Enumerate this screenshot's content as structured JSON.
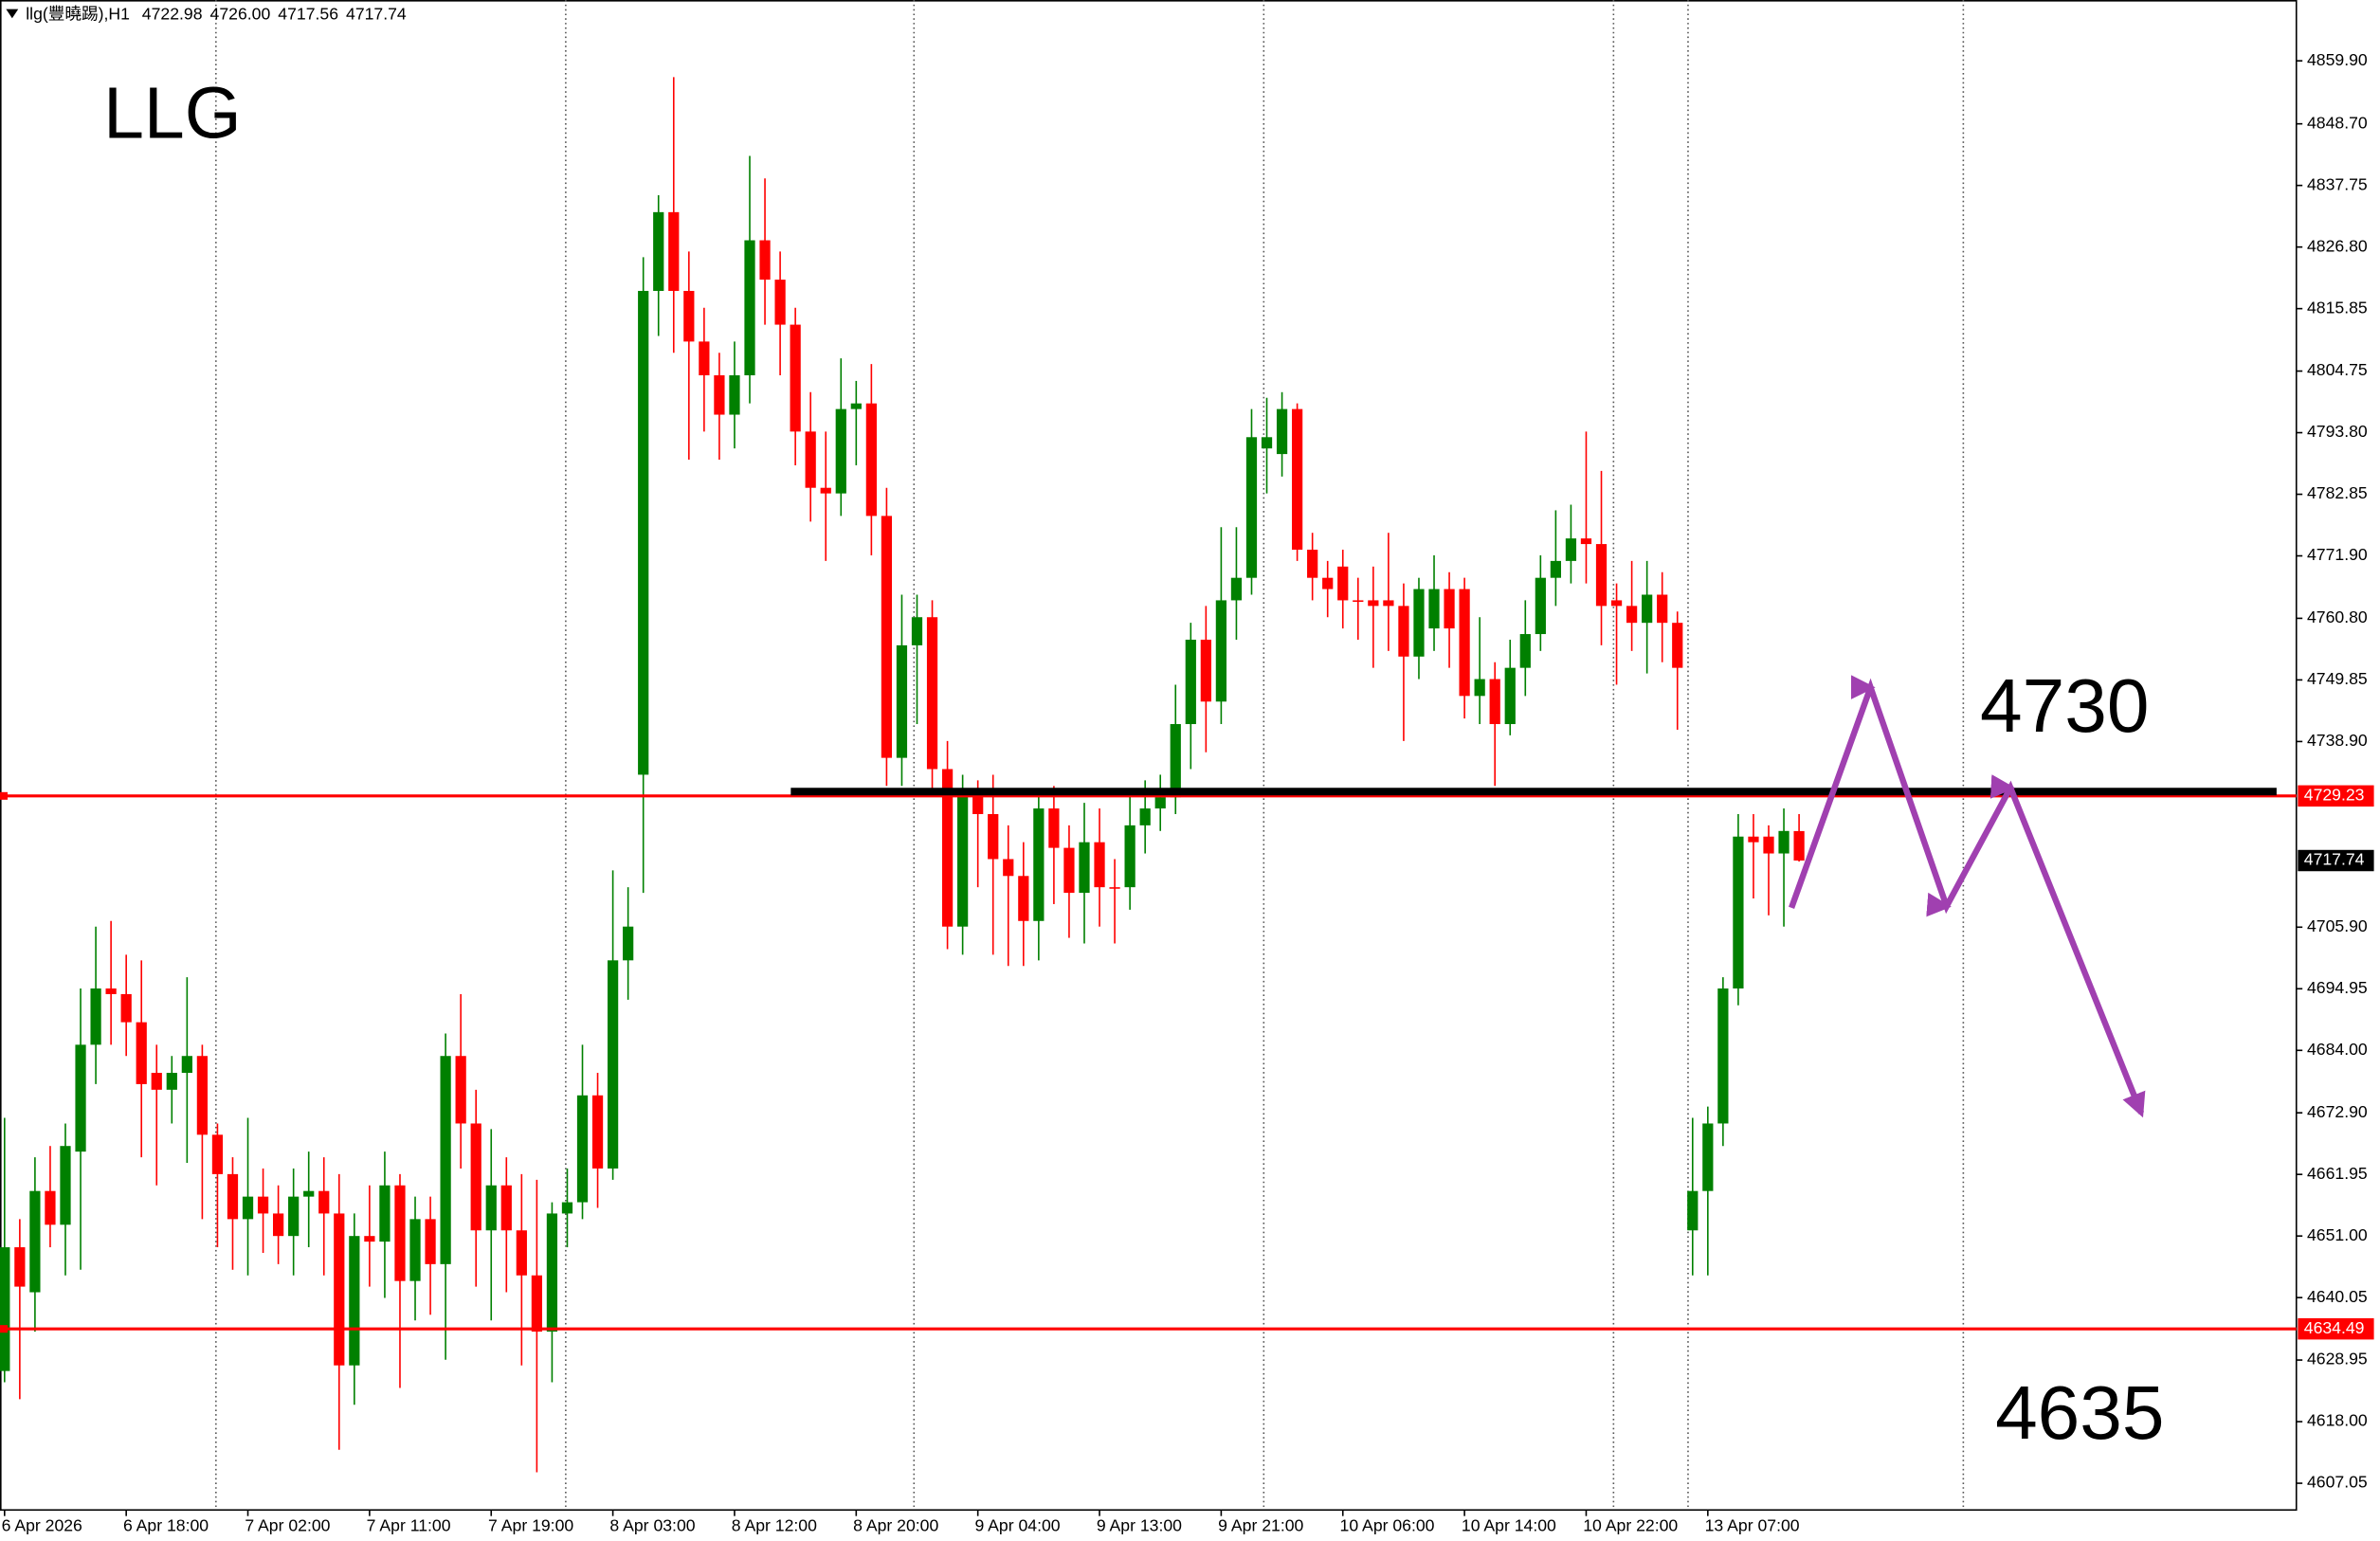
{
  "chart_data": {
    "type": "candlestick",
    "title": "llg(豐曉踢),H1",
    "title_values": [
      "4722.98",
      "4726.00",
      "4717.56",
      "4717.74"
    ],
    "annotations": [
      "LLG",
      "4730",
      "4635"
    ],
    "up_color": "#008000",
    "down_color": "#ff0000",
    "categories": [
      "6 Apr 2026",
      null,
      null,
      null,
      null,
      null,
      null,
      null,
      "6 Apr 18:00",
      null,
      null,
      null,
      null,
      null,
      null,
      null,
      "7 Apr 02:00",
      null,
      null,
      null,
      null,
      null,
      null,
      null,
      "7 Apr 11:00",
      null,
      null,
      null,
      null,
      null,
      null,
      null,
      "7 Apr 19:00",
      null,
      null,
      null,
      null,
      null,
      null,
      null,
      "8 Apr 03:00",
      null,
      null,
      null,
      null,
      null,
      null,
      null,
      "8 Apr 12:00",
      null,
      null,
      null,
      null,
      null,
      null,
      null,
      "8 Apr 20:00",
      null,
      null,
      null,
      null,
      null,
      null,
      null,
      "9 Apr 04:00",
      null,
      null,
      null,
      null,
      null,
      null,
      null,
      "9 Apr 13:00",
      null,
      null,
      null,
      null,
      null,
      null,
      null,
      "9 Apr 21:00",
      null,
      null,
      null,
      null,
      null,
      null,
      null,
      "10 Apr 06:00",
      null,
      null,
      null,
      null,
      null,
      null,
      null,
      "10 Apr 14:00",
      null,
      null,
      null,
      null,
      null,
      null,
      null,
      "10 Apr 22:00",
      null,
      null,
      null,
      null,
      null,
      null,
      null,
      "13 Apr 07:00",
      null,
      null,
      null,
      null,
      null,
      null
    ],
    "open": [
      4627,
      4649,
      4641,
      4659,
      4653,
      4666,
      4685,
      4695,
      4694,
      4689,
      4680,
      4677,
      4680,
      4683,
      4669,
      4662,
      4654,
      4658,
      4655,
      4651,
      4658,
      4659,
      4655,
      4628,
      4651,
      4650,
      4660,
      4643,
      4654,
      4646,
      4683,
      4671,
      4652,
      4660,
      4652,
      4644,
      4634,
      4655,
      4657,
      4676,
      4663,
      4700,
      4733,
      4819,
      4833,
      4819,
      4810,
      4804,
      4797,
      4804,
      4828,
      4821,
      4813,
      4794,
      4784,
      4783,
      4798,
      4799,
      4779,
      4736,
      4756,
      4761,
      4734,
      4706,
      4730,
      4726,
      4718,
      4715,
      4707,
      4727,
      4720,
      4712,
      4721,
      4713,
      4713,
      4724,
      4727,
      4729,
      4742,
      4757,
      4746,
      4764,
      4768,
      4791,
      4790,
      4798,
      4773,
      4768,
      4770,
      4764,
      4764,
      4764,
      4763,
      4754,
      4759,
      4766,
      4766,
      4747,
      4750,
      4742,
      4752,
      4758,
      4768,
      4771,
      4775,
      4774,
      4764,
      4763,
      4760,
      4765,
      4760,
      4652,
      4659,
      4671,
      4695,
      4722,
      4722,
      4719,
      4722.98
    ],
    "high": [
      4672,
      4654,
      4665,
      4667,
      4671,
      4695,
      4706,
      4707,
      4701,
      4700,
      4685,
      4683,
      4697,
      4685,
      4671,
      4665,
      4672,
      4663,
      4660,
      4663,
      4666,
      4665,
      4662,
      4655,
      4660,
      4666,
      4662,
      4658,
      4658,
      4687,
      4694,
      4677,
      4670,
      4665,
      4662,
      4661,
      4657,
      4663,
      4685,
      4680,
      4716,
      4713,
      4825,
      4836,
      4857,
      4826,
      4816,
      4808,
      4810,
      4843,
      4839,
      4826,
      4816,
      4801,
      4794,
      4807,
      4803,
      4806,
      4784,
      4765,
      4765,
      4764,
      4739,
      4733,
      4732,
      4733,
      4724,
      4721,
      4730,
      4731,
      4724,
      4728,
      4727,
      4718,
      4730,
      4732,
      4733,
      4749,
      4760,
      4763,
      4777,
      4777,
      4798,
      4800,
      4801,
      4799,
      4776,
      4771,
      4773,
      4768,
      4770,
      4776,
      4767,
      4768,
      4772,
      4769,
      4768,
      4761,
      4753,
      4757,
      4764,
      4772,
      4780,
      4781,
      4794,
      4787,
      4767,
      4771,
      4771,
      4769,
      4762,
      4672,
      4674,
      4697,
      4726,
      4726,
      4724,
      4727,
      4726
    ],
    "low": [
      4625,
      4622,
      4634,
      4649,
      4644,
      4645,
      4678,
      4685,
      4683,
      4665,
      4660,
      4671,
      4664,
      4654,
      4649,
      4645,
      4644,
      4648,
      4646,
      4644,
      4649,
      4644,
      4613,
      4621,
      4642,
      4640,
      4624,
      4636,
      4637,
      4629,
      4663,
      4642,
      4636,
      4641,
      4628,
      4609,
      4625,
      4649,
      4654,
      4656,
      4661,
      4693,
      4712,
      4811,
      4808,
      4789,
      4794,
      4789,
      4791,
      4799,
      4813,
      4804,
      4788,
      4778,
      4771,
      4779,
      4788,
      4772,
      4731,
      4731,
      4742,
      4730,
      4702,
      4701,
      4713,
      4701,
      4699,
      4699,
      4700,
      4710,
      4704,
      4703,
      4706,
      4703,
      4709,
      4719,
      4723,
      4726,
      4734,
      4737,
      4742,
      4757,
      4765,
      4783,
      4786,
      4771,
      4764,
      4761,
      4759,
      4757,
      4752,
      4755,
      4739,
      4750,
      4755,
      4752,
      4743,
      4742,
      4731,
      4740,
      4747,
      4755,
      4763,
      4767,
      4767,
      4756,
      4749,
      4755,
      4751,
      4753,
      4741,
      4644,
      4644,
      4667,
      4692,
      4711,
      4708,
      4706,
      4717.56
    ],
    "close": [
      4649,
      4642,
      4659,
      4653,
      4667,
      4685,
      4695,
      4694,
      4689,
      4678,
      4677,
      4680,
      4683,
      4669,
      4662,
      4654,
      4658,
      4655,
      4651,
      4658,
      4659,
      4655,
      4628,
      4651,
      4650,
      4660,
      4643,
      4654,
      4646,
      4683,
      4671,
      4652,
      4660,
      4652,
      4644,
      4634,
      4655,
      4657,
      4676,
      4663,
      4700,
      4706,
      4819,
      4833,
      4819,
      4810,
      4804,
      4797,
      4804,
      4828,
      4821,
      4813,
      4794,
      4784,
      4783,
      4798,
      4799,
      4779,
      4736,
      4756,
      4761,
      4734,
      4706,
      4730,
      4726,
      4718,
      4715,
      4707,
      4727,
      4720,
      4712,
      4721,
      4713,
      4713,
      4724,
      4727,
      4729,
      4742,
      4757,
      4746,
      4764,
      4768,
      4793,
      4793,
      4798,
      4773,
      4768,
      4766,
      4764,
      4764,
      4763,
      4763,
      4754,
      4766,
      4766,
      4759,
      4747,
      4750,
      4742,
      4752,
      4758,
      4768,
      4771,
      4775,
      4774,
      4763,
      4763,
      4760,
      4765,
      4760,
      4752,
      4659,
      4671,
      4695,
      4722,
      4721,
      4719,
      4723,
      4717.74
    ],
    "ylim": [
      4602.3,
      4870.71
    ],
    "yticks": [
      {
        "value": 4859.9,
        "label": "4859.90"
      },
      {
        "value": 4848.7,
        "label": "4848.70"
      },
      {
        "value": 4837.75,
        "label": "4837.75"
      },
      {
        "value": 4826.8,
        "label": "4826.80"
      },
      {
        "value": 4815.85,
        "label": "4815.85"
      },
      {
        "value": 4804.75,
        "label": "4804.75"
      },
      {
        "value": 4793.8,
        "label": "4793.80"
      },
      {
        "value": 4782.85,
        "label": "4782.85"
      },
      {
        "value": 4771.9,
        "label": "4771.90"
      },
      {
        "value": 4760.8,
        "label": "4760.80"
      },
      {
        "value": 4749.85,
        "label": "4749.85"
      },
      {
        "value": 4738.9,
        "label": "4738.90"
      },
      {
        "value": 4705.9,
        "label": "4705.90"
      },
      {
        "value": 4694.95,
        "label": "4694.95"
      },
      {
        "value": 4684.0,
        "label": "4684.00"
      },
      {
        "value": 4672.9,
        "label": "4672.90"
      },
      {
        "value": 4661.95,
        "label": "4661.95"
      },
      {
        "value": 4651.0,
        "label": "4651.00"
      },
      {
        "value": 4640.05,
        "label": "4640.05"
      },
      {
        "value": 4628.95,
        "label": "4628.95"
      },
      {
        "value": 4618.0,
        "label": "4618.00"
      },
      {
        "value": 4607.05,
        "label": "4607.05"
      }
    ],
    "levels": [
      {
        "value": 4729.23,
        "color": "#ff0000"
      },
      {
        "value": 4634.49,
        "color": "#ff0000"
      }
    ],
    "support_line": {
      "value": 4730,
      "color": "#000000"
    }
  }
}
